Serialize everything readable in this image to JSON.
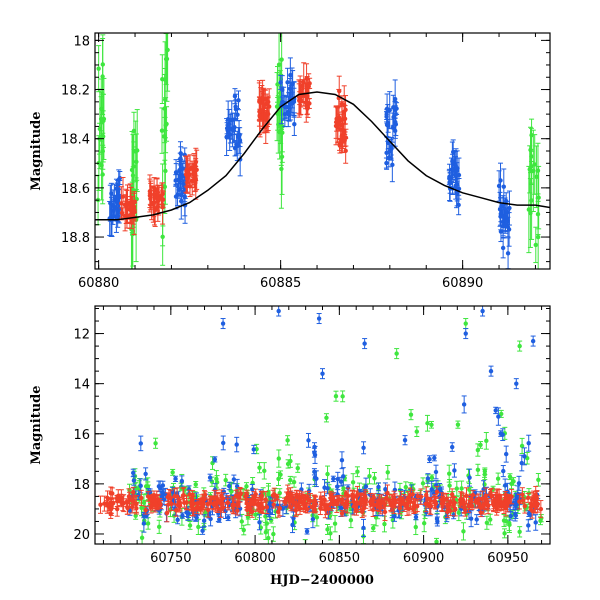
{
  "colors": {
    "blue": "#1f5fe0",
    "green": "#3ee63e",
    "red": "#f0402a",
    "model": "#000000"
  },
  "chart_data": [
    {
      "type": "scatter",
      "title": "",
      "xlabel": "",
      "ylabel": "Magnitude",
      "xlim": [
        60879.9,
        60892.4
      ],
      "ylim": [
        18.93,
        17.97
      ],
      "y_inverted": true,
      "xticks": [
        60880,
        60885,
        60890
      ],
      "yticks": [
        18.0,
        18.2,
        18.4,
        18.6,
        18.8
      ],
      "yticklabels": [
        "18",
        "18.2",
        "18.4",
        "18.6",
        "18.8"
      ],
      "model_curve": {
        "color": "black",
        "x": [
          60879.9,
          60880.5,
          60881,
          60881.5,
          60882,
          60882.5,
          60883,
          60883.5,
          60884,
          60884.5,
          60885,
          60885.5,
          60886,
          60886.5,
          60887,
          60887.5,
          60888,
          60888.5,
          60889,
          60889.5,
          60890,
          60890.5,
          60891,
          60891.5,
          60892,
          60892.4
        ],
        "y": [
          18.73,
          18.73,
          18.72,
          18.71,
          18.69,
          18.66,
          18.61,
          18.55,
          18.46,
          18.36,
          18.27,
          18.22,
          18.21,
          18.22,
          18.26,
          18.33,
          18.41,
          18.49,
          18.55,
          18.59,
          18.62,
          18.64,
          18.66,
          18.67,
          18.67,
          18.68
        ]
      },
      "series": [
        {
          "color": "blue",
          "clusters": [
            {
              "x0": 60880.3,
              "x1": 60880.6,
              "y": 18.66,
              "spread": 0.09
            },
            {
              "x0": 60882.1,
              "x1": 60882.4,
              "y": 18.58,
              "spread": 0.09
            },
            {
              "x0": 60883.5,
              "x1": 60883.9,
              "y": 18.36,
              "spread": 0.1
            },
            {
              "x0": 60885.0,
              "x1": 60885.4,
              "y": 18.25,
              "spread": 0.08
            },
            {
              "x0": 60887.9,
              "x1": 60888.2,
              "y": 18.36,
              "spread": 0.14
            },
            {
              "x0": 60889.6,
              "x1": 60889.9,
              "y": 18.55,
              "spread": 0.1
            },
            {
              "x0": 60891.0,
              "x1": 60891.3,
              "y": 18.72,
              "spread": 0.1
            }
          ]
        },
        {
          "color": "green",
          "clusters": [
            {
              "x0": 60879.95,
              "x1": 60880.15,
              "y": 18.35,
              "spread": 0.25
            },
            {
              "x0": 60880.9,
              "x1": 60881.1,
              "y": 18.6,
              "spread": 0.25
            },
            {
              "x0": 60881.7,
              "x1": 60881.9,
              "y": 18.35,
              "spread": 0.3
            },
            {
              "x0": 60884.9,
              "x1": 60885.05,
              "y": 18.3,
              "spread": 0.2
            },
            {
              "x0": 60891.8,
              "x1": 60892.1,
              "y": 18.6,
              "spread": 0.3
            }
          ]
        },
        {
          "color": "red",
          "clusters": [
            {
              "x0": 60880.6,
              "x1": 60881.0,
              "y": 18.69,
              "spread": 0.04
            },
            {
              "x0": 60881.4,
              "x1": 60881.8,
              "y": 18.64,
              "spread": 0.04
            },
            {
              "x0": 60882.4,
              "x1": 60882.7,
              "y": 18.55,
              "spread": 0.04
            },
            {
              "x0": 60884.4,
              "x1": 60884.7,
              "y": 18.28,
              "spread": 0.05
            },
            {
              "x0": 60885.5,
              "x1": 60885.8,
              "y": 18.22,
              "spread": 0.05
            },
            {
              "x0": 60886.5,
              "x1": 60886.8,
              "y": 18.32,
              "spread": 0.1
            }
          ]
        }
      ]
    },
    {
      "type": "scatter",
      "title": "",
      "xlabel": "HJD−2400000",
      "ylabel": "Magnitude",
      "xlim": [
        60705,
        60975
      ],
      "ylim": [
        20.4,
        10.9
      ],
      "y_inverted": true,
      "xticks": [
        60750,
        60800,
        60850,
        60900,
        60950
      ],
      "yticks": [
        12,
        14,
        16,
        18,
        20
      ],
      "baseline": 18.75,
      "series": [
        {
          "color": "green",
          "x_range": [
            60725,
            60970
          ],
          "scatter": 0.7
        },
        {
          "color": "blue",
          "x_range": [
            60725,
            60970
          ],
          "scatter": 0.5
        },
        {
          "color": "red",
          "x_range": [
            60708,
            60970
          ],
          "scatter": 0.18
        }
      ],
      "outliers": [
        {
          "x": 60781,
          "y": 11.6,
          "color": "blue"
        },
        {
          "x": 60814,
          "y": 11.1,
          "color": "blue"
        },
        {
          "x": 60838,
          "y": 11.4,
          "color": "blue"
        },
        {
          "x": 60865,
          "y": 12.4,
          "color": "blue"
        },
        {
          "x": 60840,
          "y": 13.6,
          "color": "blue"
        },
        {
          "x": 60884,
          "y": 12.8,
          "color": "green"
        },
        {
          "x": 60848,
          "y": 14.5,
          "color": "green"
        },
        {
          "x": 60925,
          "y": 11.6,
          "color": "green"
        },
        {
          "x": 60925,
          "y": 12.0,
          "color": "blue"
        },
        {
          "x": 60935,
          "y": 11.1,
          "color": "blue"
        },
        {
          "x": 60940,
          "y": 13.5,
          "color": "blue"
        },
        {
          "x": 60957,
          "y": 12.5,
          "color": "green"
        },
        {
          "x": 60965,
          "y": 12.3,
          "color": "blue"
        },
        {
          "x": 60955,
          "y": 14.0,
          "color": "blue"
        }
      ]
    }
  ]
}
